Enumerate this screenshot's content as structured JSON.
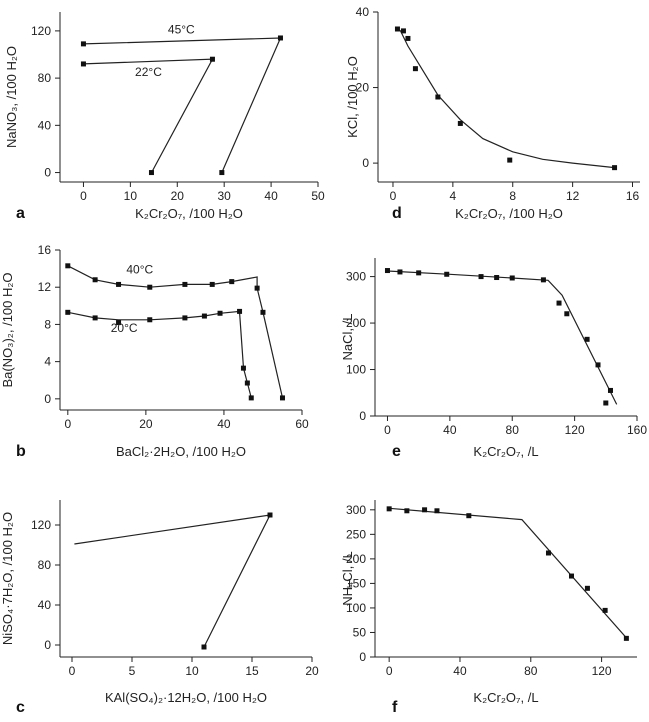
{
  "chart_data": [
    {
      "id": "a",
      "type": "line",
      "panel_label": "a",
      "xlabel": "K₂Cr₂O₇,  /100  H₂O",
      "ylabel": "NaNO₃,  /100  H₂O",
      "xlim": [
        -5,
        50
      ],
      "ylim": [
        -8,
        136
      ],
      "xticks": [
        0,
        10,
        20,
        30,
        40,
        50
      ],
      "yticks": [
        0,
        40,
        80,
        120
      ],
      "series": [
        {
          "name": "45°C",
          "x": [
            0,
            42,
            29.5
          ],
          "y": [
            109,
            114,
            0
          ]
        },
        {
          "name": "22°C",
          "x": [
            0,
            27.5,
            14.5
          ],
          "y": [
            92,
            96,
            0
          ]
        }
      ],
      "markers": [
        {
          "x": 0,
          "y": 109
        },
        {
          "x": 42,
          "y": 114
        },
        {
          "x": 29.5,
          "y": 0
        },
        {
          "x": 0,
          "y": 92
        },
        {
          "x": 27.5,
          "y": 96
        },
        {
          "x": 14.5,
          "y": 0
        }
      ],
      "annotations": [
        {
          "text": "45°C",
          "x": 18,
          "y": 118
        },
        {
          "text": "22°C",
          "x": 11,
          "y": 82
        }
      ]
    },
    {
      "id": "b",
      "type": "line",
      "panel_label": "b",
      "xlabel": "BaCl₂·2H₂O,  /100   H₂O",
      "ylabel": "Ba(NO₃)₂,  /100   H₂O",
      "xlim": [
        -2,
        60
      ],
      "ylim": [
        -1.2,
        16
      ],
      "xticks": [
        0,
        20,
        40,
        60
      ],
      "yticks": [
        0,
        4,
        8,
        12,
        16
      ],
      "series": [
        {
          "name": "40°C",
          "x": [
            0,
            7,
            13,
            21,
            30,
            37,
            42,
            48.5,
            48.5,
            50,
            55
          ],
          "y": [
            14.3,
            12.8,
            12.3,
            12.0,
            12.3,
            12.3,
            12.6,
            13.1,
            11.9,
            9.3,
            0.1
          ]
        },
        {
          "name": "20°C",
          "x": [
            0,
            7,
            13,
            21,
            30,
            35,
            39,
            44,
            45,
            46,
            47
          ],
          "y": [
            9.3,
            8.7,
            8.5,
            8.5,
            8.7,
            8.9,
            9.2,
            9.4,
            3.3,
            1.7,
            0.1
          ]
        }
      ],
      "markers": [
        {
          "x": 0,
          "y": 14.3
        },
        {
          "x": 7,
          "y": 12.8
        },
        {
          "x": 13,
          "y": 12.3
        },
        {
          "x": 21,
          "y": 12.0
        },
        {
          "x": 30,
          "y": 12.3
        },
        {
          "x": 37,
          "y": 12.3
        },
        {
          "x": 42,
          "y": 12.6
        },
        {
          "x": 48.5,
          "y": 11.9
        },
        {
          "x": 50,
          "y": 9.3
        },
        {
          "x": 55,
          "y": 0.1
        },
        {
          "x": 0,
          "y": 9.3
        },
        {
          "x": 7,
          "y": 8.7
        },
        {
          "x": 13,
          "y": 8.2
        },
        {
          "x": 21,
          "y": 8.5
        },
        {
          "x": 30,
          "y": 8.7
        },
        {
          "x": 35,
          "y": 8.9
        },
        {
          "x": 39,
          "y": 9.2
        },
        {
          "x": 44,
          "y": 9.4
        },
        {
          "x": 45,
          "y": 3.3
        },
        {
          "x": 46,
          "y": 1.7
        },
        {
          "x": 47,
          "y": 0.1
        }
      ],
      "annotations": [
        {
          "text": "40°C",
          "x": 15,
          "y": 13.5
        },
        {
          "text": "20°C",
          "x": 11,
          "y": 7.2
        }
      ]
    },
    {
      "id": "c",
      "type": "line",
      "panel_label": "c",
      "xlabel": "KAl(SO₄)₂·12H₂O,   /100   H₂O",
      "ylabel": "NiSO₄·7H₂O,  /100   H₂O",
      "xlim": [
        -1,
        20
      ],
      "ylim": [
        -12,
        145
      ],
      "xticks": [
        0,
        5,
        10,
        15,
        20
      ],
      "yticks": [
        0,
        40,
        80,
        120
      ],
      "series": [
        {
          "name": "",
          "x": [
            0.2,
            16.5,
            11
          ],
          "y": [
            101,
            130,
            -2
          ]
        }
      ],
      "markers": [
        {
          "x": 16.5,
          "y": 130
        },
        {
          "x": 11,
          "y": -2
        }
      ],
      "annotations": []
    },
    {
      "id": "d",
      "type": "line",
      "panel_label": "d",
      "xlabel": "K₂Cr₂O₇,   /100    H₂O",
      "ylabel": "KCl,   /100   H₂O",
      "xlim": [
        -1,
        16.5
      ],
      "ylim": [
        -5,
        40
      ],
      "xticks": [
        0,
        4,
        8,
        12,
        16
      ],
      "yticks": [
        0,
        20,
        40
      ],
      "series": [
        {
          "name": "",
          "x": [
            0.2,
            0.5,
            1,
            2,
            3,
            4.5,
            6,
            8,
            10,
            12,
            14.8
          ],
          "y": [
            35.5,
            35,
            31,
            24.5,
            18,
            11.5,
            6.5,
            3,
            1,
            0,
            -1.2
          ]
        }
      ],
      "markers": [
        {
          "x": 0.3,
          "y": 35.5
        },
        {
          "x": 0.7,
          "y": 35
        },
        {
          "x": 1.0,
          "y": 33
        },
        {
          "x": 1.5,
          "y": 25
        },
        {
          "x": 3,
          "y": 17.5
        },
        {
          "x": 4.5,
          "y": 10.5
        },
        {
          "x": 7.8,
          "y": 0.8
        },
        {
          "x": 14.8,
          "y": -1.2
        }
      ],
      "annotations": []
    },
    {
      "id": "e",
      "type": "line",
      "panel_label": "e",
      "xlabel": "K₂Cr₂O₇,   /L",
      "ylabel": "NaCl,   /L",
      "xlim": [
        -8,
        160
      ],
      "ylim": [
        0,
        340
      ],
      "xticks": [
        0,
        40,
        80,
        120,
        160
      ],
      "yticks": [
        0,
        100,
        200,
        300
      ],
      "series": [
        {
          "name": "",
          "x": [
            0,
            40,
            80,
            103,
            112,
            147
          ],
          "y": [
            312,
            305,
            297,
            292,
            260,
            25
          ]
        }
      ],
      "markers": [
        {
          "x": 0,
          "y": 313
        },
        {
          "x": 8,
          "y": 310
        },
        {
          "x": 20,
          "y": 308
        },
        {
          "x": 38,
          "y": 305
        },
        {
          "x": 60,
          "y": 300
        },
        {
          "x": 70,
          "y": 298
        },
        {
          "x": 80,
          "y": 297
        },
        {
          "x": 100,
          "y": 293
        },
        {
          "x": 110,
          "y": 243
        },
        {
          "x": 115,
          "y": 220
        },
        {
          "x": 128,
          "y": 165
        },
        {
          "x": 135,
          "y": 110
        },
        {
          "x": 143,
          "y": 55
        },
        {
          "x": 140,
          "y": 28
        }
      ],
      "annotations": []
    },
    {
      "id": "f",
      "type": "line",
      "panel_label": "f",
      "xlabel": "K₂Cr₂O₇,   /L",
      "ylabel": "NH₄Cl,   /L",
      "xlim": [
        -8,
        140
      ],
      "ylim": [
        0,
        320
      ],
      "xticks": [
        0,
        40,
        80,
        120
      ],
      "yticks": [
        0,
        50,
        100,
        150,
        200,
        250,
        300
      ],
      "series": [
        {
          "name": "",
          "x": [
            0,
            75,
            135
          ],
          "y": [
            303,
            280,
            35
          ]
        }
      ],
      "markers": [
        {
          "x": 0,
          "y": 302
        },
        {
          "x": 10,
          "y": 298
        },
        {
          "x": 20,
          "y": 300
        },
        {
          "x": 27,
          "y": 298
        },
        {
          "x": 45,
          "y": 288
        },
        {
          "x": 90,
          "y": 212
        },
        {
          "x": 103,
          "y": 165
        },
        {
          "x": 112,
          "y": 140
        },
        {
          "x": 122,
          "y": 95
        },
        {
          "x": 134,
          "y": 38
        }
      ],
      "annotations": []
    }
  ]
}
